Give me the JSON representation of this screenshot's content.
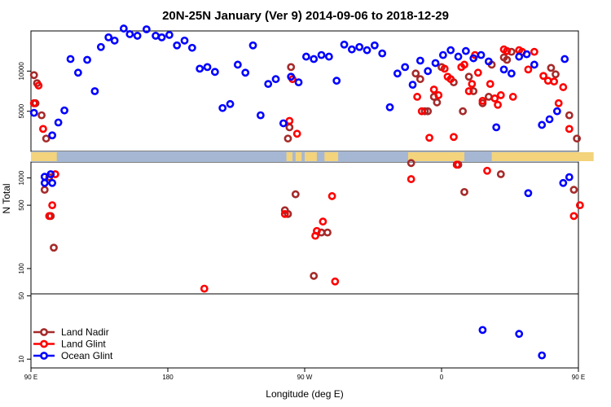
{
  "chart_data": {
    "type": "scatter",
    "title": "20N-25N January (Ver 9)   2014-09-06 to 2018-12-29",
    "xlabel": "Longitude (deg E)",
    "ylabel": "N Total",
    "xlim": [
      90,
      450
    ],
    "x_ticks": [
      {
        "value": 90,
        "label": "90 E"
      },
      {
        "value": 180,
        "label": "180"
      },
      {
        "value": 270,
        "label": "90 W"
      },
      {
        "value": 360,
        "label": "0"
      },
      {
        "value": 450,
        "label": "90 E"
      },
      {
        "value": 540,
        "label": "180"
      }
    ],
    "upper_panel": {
      "scale": "linear",
      "ylim": [
        0,
        15000
      ],
      "y_ticks": [
        5000,
        10000
      ]
    },
    "lower_panel": {
      "scale": "log",
      "ylim": [
        8,
        1500
      ],
      "y_ticks": [
        10,
        50,
        100,
        500,
        1000
      ]
    },
    "series": [
      {
        "name": "Land Nadir",
        "color": "#a52a2a",
        "points": [
          [
            92,
            9500
          ],
          [
            93,
            6000
          ],
          [
            94,
            8500
          ],
          [
            97,
            4500
          ],
          [
            99,
            740
          ],
          [
            100,
            1600
          ],
          [
            102,
            1020
          ],
          [
            103,
            380
          ],
          [
            105,
            170
          ],
          [
            257,
            440
          ],
          [
            259,
            400
          ],
          [
            259,
            1600
          ],
          [
            260,
            3000
          ],
          [
            261,
            10500
          ],
          [
            264,
            660
          ],
          [
            276,
            83
          ],
          [
            281,
            250
          ],
          [
            285,
            250
          ],
          [
            340,
            1460
          ],
          [
            343,
            9700
          ],
          [
            346,
            9000
          ],
          [
            349,
            5000
          ],
          [
            351,
            5000
          ],
          [
            355,
            6800
          ],
          [
            357,
            6100
          ],
          [
            360,
            10500
          ],
          [
            368,
            8600
          ],
          [
            371,
            1400
          ],
          [
            374,
            5000
          ],
          [
            375,
            700
          ],
          [
            378,
            9300
          ],
          [
            381,
            7500
          ],
          [
            387,
            6000
          ],
          [
            391,
            6800
          ],
          [
            393,
            10800
          ],
          [
            399,
            1100
          ],
          [
            401,
            11700
          ],
          [
            403,
            11400
          ],
          [
            406,
            12400
          ],
          [
            432,
            10400
          ],
          [
            435,
            9600
          ],
          [
            444,
            4500
          ],
          [
            447,
            740
          ],
          [
            449,
            1600
          ],
          [
            452,
            1020
          ],
          [
            454,
            380
          ],
          [
            456,
            170
          ]
        ]
      },
      {
        "name": "Land Glint",
        "color": "#ff0000",
        "points": [
          [
            92,
            6000
          ],
          [
            95,
            8200
          ],
          [
            98,
            2800
          ],
          [
            102,
            380
          ],
          [
            104,
            500
          ],
          [
            106,
            1100
          ],
          [
            204,
            60
          ],
          [
            257,
            400
          ],
          [
            260,
            3800
          ],
          [
            262,
            9000
          ],
          [
            265,
            2200
          ],
          [
            277,
            230
          ],
          [
            278,
            260
          ],
          [
            282,
            330
          ],
          [
            288,
            630
          ],
          [
            290,
            72
          ],
          [
            340,
            970
          ],
          [
            344,
            6800
          ],
          [
            347,
            5000
          ],
          [
            352,
            1700
          ],
          [
            355,
            7700
          ],
          [
            358,
            7000
          ],
          [
            362,
            10300
          ],
          [
            364,
            9300
          ],
          [
            366,
            9000
          ],
          [
            368,
            1800
          ],
          [
            370,
            1400
          ],
          [
            373,
            10500
          ],
          [
            375,
            10800
          ],
          [
            378,
            7500
          ],
          [
            380,
            8400
          ],
          [
            382,
            12000
          ],
          [
            384,
            9800
          ],
          [
            387,
            6300
          ],
          [
            390,
            1200
          ],
          [
            392,
            8400
          ],
          [
            395,
            6600
          ],
          [
            397,
            5800
          ],
          [
            399,
            7000
          ],
          [
            401,
            12700
          ],
          [
            403,
            12500
          ],
          [
            407,
            6800
          ],
          [
            411,
            12600
          ],
          [
            413,
            12400
          ],
          [
            417,
            10200
          ],
          [
            421,
            12400
          ],
          [
            427,
            9400
          ],
          [
            430,
            8800
          ],
          [
            434,
            8700
          ],
          [
            437,
            6000
          ],
          [
            440,
            8000
          ],
          [
            444,
            2800
          ],
          [
            447,
            380
          ],
          [
            451,
            500
          ],
          [
            453,
            1100
          ]
        ]
      },
      {
        "name": "Ocean Glint",
        "color": "#0000ff",
        "points": [
          [
            92,
            4800
          ],
          [
            104,
            2000
          ],
          [
            108,
            3600
          ],
          [
            112,
            5100
          ],
          [
            116,
            11500
          ],
          [
            121,
            9800
          ],
          [
            127,
            11400
          ],
          [
            132,
            7500
          ],
          [
            136,
            13000
          ],
          [
            141,
            14200
          ],
          [
            145,
            13800
          ],
          [
            151,
            15300
          ],
          [
            155,
            14600
          ],
          [
            160,
            14400
          ],
          [
            166,
            15200
          ],
          [
            172,
            14400
          ],
          [
            176,
            14200
          ],
          [
            181,
            14500
          ],
          [
            186,
            13200
          ],
          [
            191,
            13800
          ],
          [
            196,
            12900
          ],
          [
            201,
            10300
          ],
          [
            206,
            10500
          ],
          [
            211,
            9900
          ],
          [
            216,
            5400
          ],
          [
            221,
            5900
          ],
          [
            226,
            10800
          ],
          [
            231,
            9800
          ],
          [
            236,
            13200
          ],
          [
            241,
            4500
          ],
          [
            246,
            8400
          ],
          [
            251,
            9000
          ],
          [
            256,
            3500
          ],
          [
            261,
            9300
          ],
          [
            266,
            8600
          ],
          [
            271,
            11800
          ],
          [
            276,
            11500
          ],
          [
            281,
            12000
          ],
          [
            286,
            11800
          ],
          [
            291,
            8800
          ],
          [
            296,
            13300
          ],
          [
            301,
            12700
          ],
          [
            306,
            13000
          ],
          [
            311,
            12600
          ],
          [
            316,
            13200
          ],
          [
            321,
            12200
          ],
          [
            326,
            5500
          ],
          [
            331,
            9700
          ],
          [
            336,
            10500
          ],
          [
            341,
            8300
          ],
          [
            346,
            11300
          ],
          [
            351,
            10000
          ],
          [
            356,
            11000
          ],
          [
            361,
            12000
          ],
          [
            366,
            12600
          ],
          [
            371,
            11800
          ],
          [
            376,
            12500
          ],
          [
            381,
            11600
          ],
          [
            386,
            12000
          ],
          [
            391,
            11200
          ],
          [
            396,
            3000
          ],
          [
            401,
            10200
          ],
          [
            406,
            9700
          ],
          [
            411,
            11800
          ],
          [
            416,
            12100
          ],
          [
            421,
            10800
          ],
          [
            426,
            3300
          ],
          [
            431,
            4000
          ],
          [
            436,
            5000
          ],
          [
            441,
            11500
          ],
          [
            99,
            880
          ],
          [
            104,
            880
          ],
          [
            99,
            1030
          ],
          [
            103,
            1100
          ],
          [
            387,
            21
          ],
          [
            411,
            19
          ],
          [
            426,
            11
          ],
          [
            417,
            680
          ],
          [
            440,
            880
          ],
          [
            444,
            1020
          ]
        ]
      }
    ],
    "legend": {
      "placement": "bottom-left"
    },
    "grid": false
  }
}
